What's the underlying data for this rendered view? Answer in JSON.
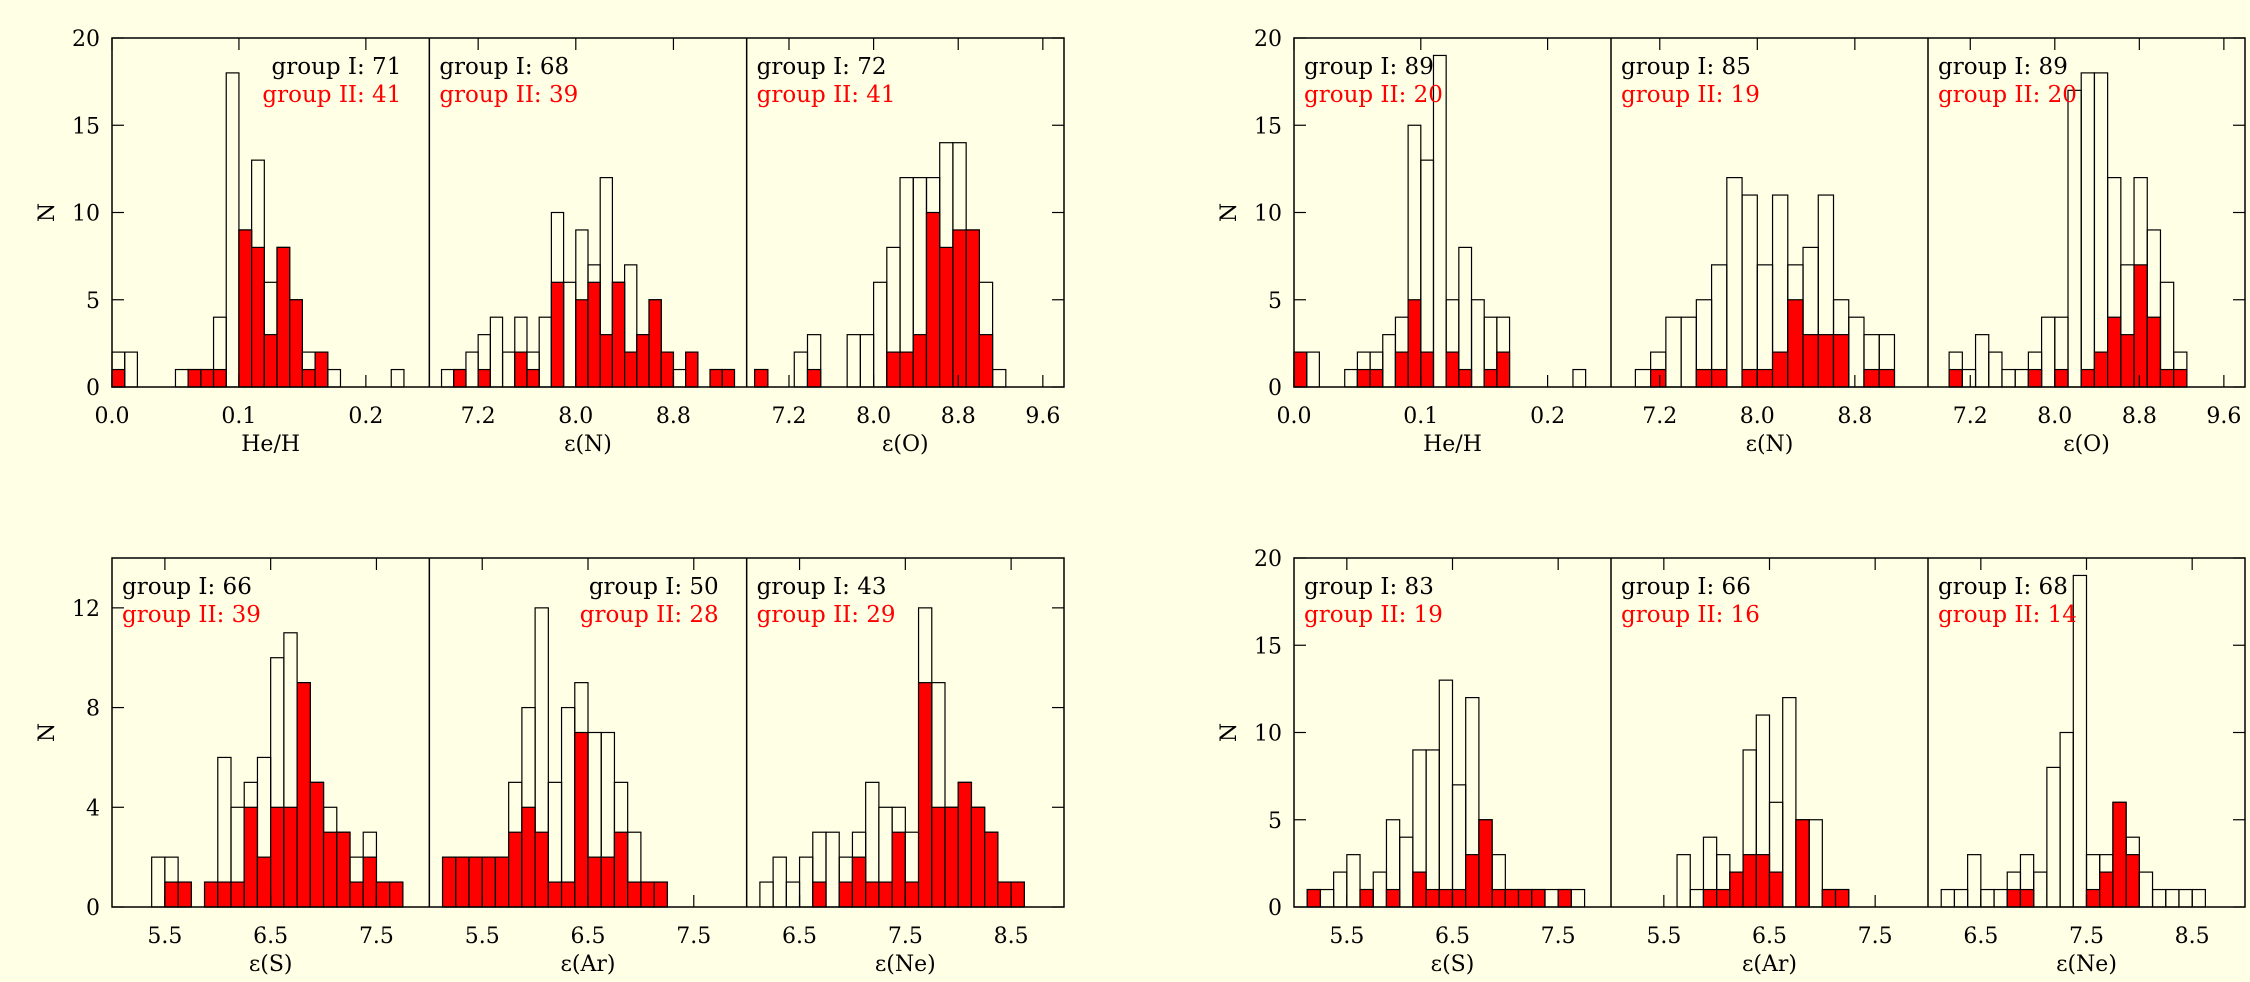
{
  "figure": {
    "background": "#ffffe6",
    "group2_color": "#ff0000",
    "frame_color": "#000000"
  },
  "chart_data": [
    {
      "type": "bar",
      "panel": "top-left",
      "ylabel": "N",
      "ylim": [
        0,
        20
      ],
      "yticks": [
        "0",
        "5",
        "10",
        "15",
        "20"
      ],
      "subplots": [
        {
          "xlabel": "He/H",
          "xlim": [
            0.0,
            0.25
          ],
          "xticks": [
            "0.0",
            "0.1",
            "0.2"
          ],
          "xtick_values": [
            0.0,
            0.1,
            0.2
          ],
          "bin_width": 0.01,
          "bin_starts": [
            0.0,
            0.01,
            0.05,
            0.06,
            0.07,
            0.08,
            0.09,
            0.1,
            0.11,
            0.12,
            0.13,
            0.14,
            0.15,
            0.16,
            0.17,
            0.22
          ],
          "group1": [
            2,
            2,
            1,
            1,
            1,
            4,
            18,
            9,
            13,
            6,
            8,
            5,
            2,
            2,
            1,
            1
          ],
          "group2": [
            1,
            0,
            0,
            1,
            1,
            1,
            0,
            9,
            8,
            3,
            8,
            5,
            1,
            2,
            0,
            0
          ],
          "label_align": "right",
          "annotation": {
            "group1": "group I: 71",
            "group2": "group II: 41"
          }
        },
        {
          "xlabel": "ε(N)",
          "xlim": [
            6.8,
            9.4
          ],
          "xticks": [
            "7.2",
            "8.0",
            "8.8"
          ],
          "xtick_values": [
            7.2,
            8.0,
            8.8
          ],
          "bin_width": 0.1,
          "bin_starts": [
            6.9,
            7.0,
            7.1,
            7.2,
            7.3,
            7.4,
            7.5,
            7.6,
            7.7,
            7.8,
            7.9,
            8.0,
            8.1,
            8.2,
            8.3,
            8.4,
            8.5,
            8.6,
            8.7,
            8.8,
            8.9,
            9.0,
            9.1,
            9.2
          ],
          "group1": [
            1,
            1,
            2,
            3,
            4,
            2,
            4,
            2,
            4,
            10,
            6,
            9,
            7,
            12,
            6,
            7,
            3,
            5,
            2,
            1,
            2,
            0,
            1,
            1
          ],
          "group2": [
            0,
            1,
            0,
            1,
            0,
            0,
            2,
            1,
            0,
            6,
            0,
            5,
            6,
            3,
            6,
            2,
            3,
            5,
            2,
            0,
            2,
            0,
            1,
            1
          ],
          "label_align": "left",
          "annotation": {
            "group1": "group I: 68",
            "group2": "group II: 39"
          }
        },
        {
          "xlabel": "ε(O)",
          "xlim": [
            6.8,
            9.8
          ],
          "xticks": [
            "7.2",
            "8.0",
            "8.8",
            "9.6"
          ],
          "xtick_values": [
            7.2,
            8.0,
            8.8,
            9.6
          ],
          "bin_width": 0.125,
          "bin_starts": [
            6.875,
            7.25,
            7.375,
            7.75,
            7.875,
            8.0,
            8.125,
            8.25,
            8.375,
            8.5,
            8.625,
            8.75,
            8.875,
            9.0,
            9.125
          ],
          "group1": [
            1,
            2,
            3,
            3,
            3,
            6,
            8,
            12,
            12,
            12,
            14,
            14,
            9,
            6,
            1
          ],
          "group2": [
            1,
            0,
            1,
            0,
            0,
            0,
            2,
            2,
            3,
            10,
            8,
            9,
            9,
            3,
            0
          ],
          "label_align": "left",
          "annotation": {
            "group1": "group I: 72",
            "group2": "group II: 41"
          }
        }
      ]
    },
    {
      "type": "bar",
      "panel": "top-right",
      "ylabel": "N",
      "ylim": [
        0,
        20
      ],
      "yticks": [
        "0",
        "5",
        "10",
        "15",
        "20"
      ],
      "subplots": [
        {
          "xlabel": "He/H",
          "xlim": [
            0.0,
            0.25
          ],
          "xticks": [
            "0.0",
            "0.1",
            "0.2"
          ],
          "xtick_values": [
            0.0,
            0.1,
            0.2
          ],
          "bin_width": 0.01,
          "bin_starts": [
            0.0,
            0.01,
            0.04,
            0.05,
            0.06,
            0.07,
            0.08,
            0.09,
            0.1,
            0.11,
            0.12,
            0.13,
            0.14,
            0.15,
            0.16,
            0.22
          ],
          "group1": [
            2,
            2,
            1,
            2,
            2,
            3,
            4,
            15,
            13,
            19,
            5,
            8,
            5,
            4,
            4,
            1
          ],
          "group2": [
            2,
            0,
            0,
            1,
            1,
            0,
            2,
            5,
            2,
            0,
            2,
            1,
            0,
            1,
            2,
            0
          ],
          "label_align": "left",
          "annotation": {
            "group1": "group I: 89",
            "group2": "group II: 20"
          }
        },
        {
          "xlabel": "ε(N)",
          "xlim": [
            6.8,
            9.4
          ],
          "xticks": [
            "7.2",
            "8.0",
            "8.8"
          ],
          "xtick_values": [
            7.2,
            8.0,
            8.8
          ],
          "bin_width": 0.125,
          "bin_starts": [
            7.0,
            7.125,
            7.25,
            7.375,
            7.5,
            7.625,
            7.75,
            7.875,
            8.0,
            8.125,
            8.25,
            8.375,
            8.5,
            8.625,
            8.75,
            8.875,
            9.0
          ],
          "group1": [
            1,
            2,
            4,
            4,
            5,
            7,
            12,
            11,
            7,
            11,
            7,
            8,
            11,
            5,
            4,
            3,
            3
          ],
          "group2": [
            0,
            1,
            0,
            0,
            1,
            1,
            0,
            1,
            1,
            2,
            5,
            3,
            3,
            3,
            0,
            1,
            1
          ],
          "label_align": "left",
          "annotation": {
            "group1": "group I: 85",
            "group2": "group II: 19"
          }
        },
        {
          "xlabel": "ε(O)",
          "xlim": [
            6.8,
            9.8
          ],
          "xticks": [
            "7.2",
            "8.0",
            "8.8",
            "9.6"
          ],
          "xtick_values": [
            7.2,
            8.0,
            8.8,
            9.6
          ],
          "bin_width": 0.125,
          "bin_starts": [
            7.0,
            7.125,
            7.25,
            7.375,
            7.5,
            7.625,
            7.75,
            7.875,
            8.0,
            8.125,
            8.25,
            8.375,
            8.5,
            8.625,
            8.75,
            8.875,
            9.0,
            9.125
          ],
          "group1": [
            2,
            1,
            3,
            2,
            1,
            1,
            2,
            4,
            4,
            17,
            18,
            18,
            12,
            7,
            12,
            9,
            6,
            2
          ],
          "group2": [
            1,
            0,
            0,
            0,
            0,
            0,
            1,
            0,
            1,
            0,
            1,
            2,
            4,
            3,
            7,
            4,
            1,
            1
          ],
          "label_align": "left",
          "annotation": {
            "group1": "group I: 89",
            "group2": "group II: 20"
          }
        }
      ]
    },
    {
      "type": "bar",
      "panel": "bottom-left",
      "ylabel": "N",
      "ylim": [
        0,
        14
      ],
      "yticks": [
        "0",
        "4",
        "8",
        "12"
      ],
      "ytick_values": [
        0,
        4,
        8,
        12
      ],
      "subplots": [
        {
          "xlabel": "ε(S)",
          "xlim": [
            5.0,
            8.0
          ],
          "xticks": [
            "5.5",
            "6.5",
            "7.5"
          ],
          "xtick_values": [
            5.5,
            6.5,
            7.5
          ],
          "bin_width": 0.125,
          "bin_starts": [
            5.375,
            5.5,
            5.625,
            5.875,
            6.0,
            6.125,
            6.25,
            6.375,
            6.5,
            6.625,
            6.75,
            6.875,
            7.0,
            7.125,
            7.25,
            7.375,
            7.5,
            7.625
          ],
          "group1": [
            2,
            2,
            1,
            1,
            6,
            4,
            5,
            6,
            10,
            11,
            9,
            5,
            4,
            3,
            2,
            3,
            1,
            1
          ],
          "group2": [
            0,
            1,
            1,
            1,
            1,
            1,
            4,
            2,
            4,
            4,
            9,
            5,
            3,
            3,
            1,
            2,
            1,
            1
          ],
          "label_align": "left",
          "annotation": {
            "group1": "group I: 66",
            "group2": "group II: 39"
          }
        },
        {
          "xlabel": "ε(Ar)",
          "xlim": [
            5.0,
            8.0
          ],
          "xticks": [
            "5.5",
            "6.5",
            "7.5"
          ],
          "xtick_values": [
            5.5,
            6.5,
            7.5
          ],
          "bin_width": 0.125,
          "bin_starts": [
            5.125,
            5.25,
            5.375,
            5.5,
            5.625,
            5.75,
            5.875,
            6.0,
            6.125,
            6.25,
            6.375,
            6.5,
            6.625,
            6.75,
            6.875,
            7.0,
            7.125
          ],
          "group1": [
            2,
            2,
            2,
            2,
            2,
            5,
            8,
            12,
            5,
            8,
            9,
            7,
            7,
            5,
            3,
            1,
            1
          ],
          "group2": [
            2,
            2,
            2,
            2,
            2,
            3,
            4,
            3,
            1,
            1,
            7,
            2,
            2,
            3,
            1,
            1,
            1
          ],
          "label_align": "right",
          "annotation": {
            "group1": "group I: 50",
            "group2": "group II: 28"
          }
        },
        {
          "xlabel": "ε(Ne)",
          "xlim": [
            6.0,
            9.0
          ],
          "xticks": [
            "6.5",
            "7.5",
            "8.5"
          ],
          "xtick_values": [
            6.5,
            7.5,
            8.5
          ],
          "bin_width": 0.125,
          "bin_starts": [
            6.125,
            6.25,
            6.375,
            6.5,
            6.625,
            6.75,
            6.875,
            7.0,
            7.125,
            7.25,
            7.375,
            7.5,
            7.625,
            7.75,
            7.875,
            8.0,
            8.125,
            8.25,
            8.375,
            8.5
          ],
          "group1": [
            1,
            2,
            1,
            2,
            3,
            3,
            2,
            3,
            5,
            4,
            4,
            3,
            12,
            9,
            4,
            5,
            4,
            3,
            1,
            1
          ],
          "group2": [
            0,
            0,
            0,
            0,
            1,
            0,
            1,
            2,
            1,
            1,
            3,
            1,
            9,
            4,
            4,
            5,
            4,
            3,
            1,
            1
          ],
          "label_align": "left",
          "annotation": {
            "group1": "group I: 43",
            "group2": "group II: 29"
          }
        }
      ]
    },
    {
      "type": "bar",
      "panel": "bottom-right",
      "ylabel": "N",
      "ylim": [
        0,
        20
      ],
      "yticks": [
        "0",
        "5",
        "10",
        "15",
        "20"
      ],
      "subplots": [
        {
          "xlabel": "ε(S)",
          "xlim": [
            5.0,
            8.0
          ],
          "xticks": [
            "5.5",
            "6.5",
            "7.5"
          ],
          "xtick_values": [
            5.5,
            6.5,
            7.5
          ],
          "bin_width": 0.125,
          "bin_starts": [
            5.125,
            5.25,
            5.375,
            5.5,
            5.625,
            5.75,
            5.875,
            6.0,
            6.125,
            6.25,
            6.375,
            6.5,
            6.625,
            6.75,
            6.875,
            7.0,
            7.125,
            7.25,
            7.375,
            7.5,
            7.625
          ],
          "group1": [
            1,
            1,
            2,
            3,
            1,
            2,
            5,
            4,
            9,
            9,
            13,
            7,
            12,
            5,
            3,
            1,
            1,
            1,
            1,
            1,
            1
          ],
          "group2": [
            1,
            0,
            0,
            0,
            1,
            0,
            1,
            0,
            2,
            1,
            1,
            1,
            3,
            5,
            1,
            1,
            1,
            1,
            0,
            1,
            0
          ],
          "label_align": "left",
          "annotation": {
            "group1": "group I: 83",
            "group2": "group II: 19"
          }
        },
        {
          "xlabel": "ε(Ar)",
          "xlim": [
            5.0,
            8.0
          ],
          "xticks": [
            "5.5",
            "6.5",
            "7.5"
          ],
          "xtick_values": [
            5.5,
            6.5,
            7.5
          ],
          "bin_width": 0.125,
          "bin_starts": [
            5.625,
            5.75,
            5.875,
            6.0,
            6.125,
            6.25,
            6.375,
            6.5,
            6.625,
            6.75,
            6.875,
            7.0,
            7.125
          ],
          "group1": [
            3,
            1,
            4,
            3,
            2,
            9,
            11,
            6,
            12,
            5,
            5,
            1,
            1
          ],
          "group2": [
            0,
            0,
            1,
            1,
            2,
            3,
            3,
            2,
            0,
            5,
            0,
            1,
            1
          ],
          "label_align": "left",
          "annotation": {
            "group1": "group I: 66",
            "group2": "group II: 16"
          }
        },
        {
          "xlabel": "ε(Ne)",
          "xlim": [
            6.0,
            9.0
          ],
          "xticks": [
            "6.5",
            "7.5",
            "8.5"
          ],
          "xtick_values": [
            6.5,
            7.5,
            8.5
          ],
          "bin_width": 0.125,
          "bin_starts": [
            6.125,
            6.25,
            6.375,
            6.5,
            6.625,
            6.75,
            6.875,
            7.0,
            7.125,
            7.25,
            7.375,
            7.5,
            7.625,
            7.75,
            7.875,
            8.0,
            8.125,
            8.25,
            8.375,
            8.5
          ],
          "group1": [
            1,
            1,
            3,
            1,
            1,
            2,
            3,
            2,
            8,
            10,
            19,
            3,
            3,
            6,
            4,
            2,
            1,
            1,
            1,
            1
          ],
          "group2": [
            0,
            0,
            0,
            0,
            0,
            1,
            1,
            0,
            0,
            0,
            0,
            1,
            2,
            6,
            3,
            0,
            0,
            0,
            0,
            0
          ],
          "label_align": "left",
          "annotation": {
            "group1": "group I: 68",
            "group2": "group II: 14"
          }
        }
      ]
    }
  ]
}
